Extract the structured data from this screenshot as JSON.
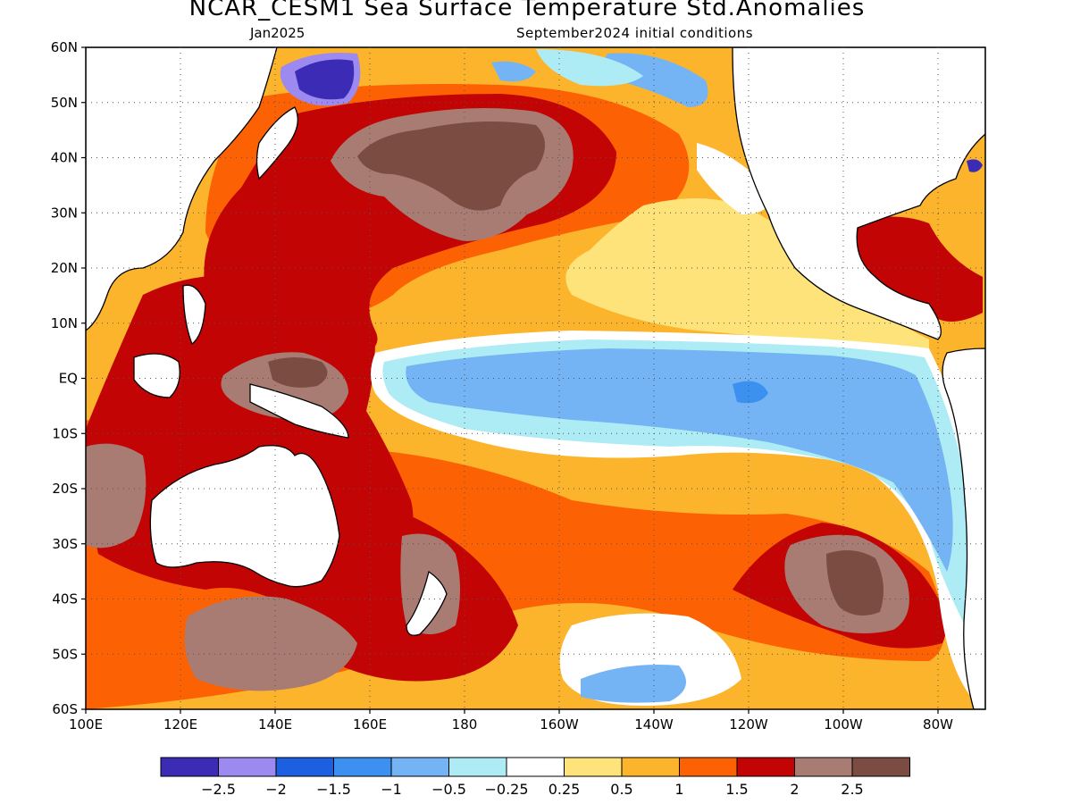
{
  "title": "NCAR_CESM1 Sea Surface Temperature Std.Anomalies",
  "subtitle_left": "Jan2025",
  "subtitle_right": "September2024 initial conditions",
  "map": {
    "lon_range": [
      100,
      290
    ],
    "lat_range": [
      -60,
      60
    ],
    "lat_ticks": [
      {
        "v": 60,
        "label": "60N"
      },
      {
        "v": 50,
        "label": "50N"
      },
      {
        "v": 40,
        "label": "40N"
      },
      {
        "v": 30,
        "label": "30N"
      },
      {
        "v": 20,
        "label": "20N"
      },
      {
        "v": 10,
        "label": "10N"
      },
      {
        "v": 0,
        "label": "EQ"
      },
      {
        "v": -10,
        "label": "10S"
      },
      {
        "v": -20,
        "label": "20S"
      },
      {
        "v": -30,
        "label": "30S"
      },
      {
        "v": -40,
        "label": "40S"
      },
      {
        "v": -50,
        "label": "50S"
      },
      {
        "v": -60,
        "label": "60S"
      }
    ],
    "lon_ticks": [
      {
        "v": 100,
        "label": "100E"
      },
      {
        "v": 120,
        "label": "120E"
      },
      {
        "v": 140,
        "label": "140E"
      },
      {
        "v": 160,
        "label": "160E"
      },
      {
        "v": 180,
        "label": "180"
      },
      {
        "v": 200,
        "label": "160W"
      },
      {
        "v": 220,
        "label": "140W"
      },
      {
        "v": 240,
        "label": "120W"
      },
      {
        "v": 260,
        "label": "100W"
      },
      {
        "v": 280,
        "label": "80W"
      }
    ],
    "grid": true
  },
  "colorbar": {
    "colors": [
      "#3b2bb5",
      "#9d8af0",
      "#1c5fe0",
      "#3b90f0",
      "#74b4f5",
      "#aeecf5",
      "#ffffff",
      "#fde37a",
      "#fcb42c",
      "#fc6204",
      "#c20404",
      "#a87c72",
      "#7a4c42"
    ],
    "labels": [
      "-2.5",
      "-2",
      "-1.5",
      "-1",
      "-0.5",
      "-0.25",
      "0.25",
      "0.5",
      "1",
      "1.5",
      "2",
      "2.5"
    ]
  },
  "colors": {
    "white": "#ffffff",
    "pale_yellow": "#fde37a",
    "yellow_orange": "#fcb42c",
    "orange": "#fc6204",
    "red": "#c20404",
    "brown": "#a87c72",
    "dark_brown": "#7a4c42",
    "light_blue": "#74b4f5",
    "pale_cyan": "#aeecf5",
    "mid_blue": "#3b90f0",
    "blue": "#1c5fe0",
    "indigo": "#3b2bb5",
    "lavender": "#9d8af0",
    "land": "#ffffff",
    "coast": "#000000"
  }
}
